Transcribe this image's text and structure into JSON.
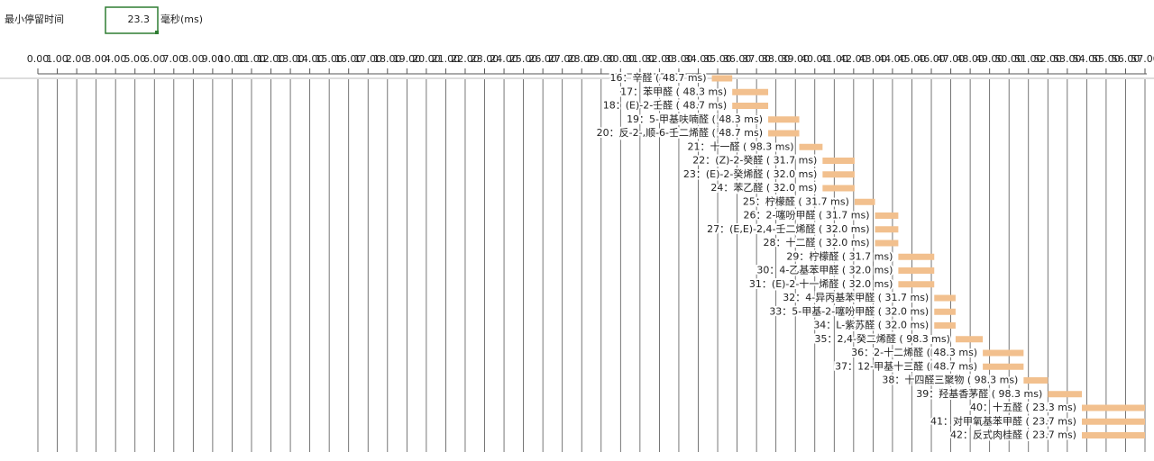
{
  "header": {
    "label": "最小停留时间",
    "value": "23.3",
    "unit": "毫秒(ms)"
  },
  "timeline": {
    "xlim": [
      0,
      57
    ],
    "ticks": [
      {
        "value": 0,
        "label": "0.00"
      },
      {
        "value": 1,
        "label": "1.00"
      },
      {
        "value": 2,
        "label": "2.00"
      },
      {
        "value": 3,
        "label": "3.00"
      },
      {
        "value": 4,
        "label": "4.00"
      },
      {
        "value": 5,
        "label": "5.00"
      },
      {
        "value": 6,
        "label": "6.00"
      },
      {
        "value": 7,
        "label": "7.00"
      },
      {
        "value": 8,
        "label": "8.00"
      },
      {
        "value": 9,
        "label": "9.00"
      },
      {
        "value": 10,
        "label": "10.00"
      },
      {
        "value": 11,
        "label": "11.00"
      },
      {
        "value": 12,
        "label": "12.00"
      },
      {
        "value": 13,
        "label": "13.00"
      },
      {
        "value": 14,
        "label": "14.00"
      },
      {
        "value": 15,
        "label": "15.00"
      },
      {
        "value": 16,
        "label": "16.00"
      },
      {
        "value": 17,
        "label": "17.00"
      },
      {
        "value": 18,
        "label": "18.00"
      },
      {
        "value": 19,
        "label": "19.00"
      },
      {
        "value": 20,
        "label": "20.00"
      },
      {
        "value": 21,
        "label": "21.00"
      },
      {
        "value": 22,
        "label": "22.00"
      },
      {
        "value": 23,
        "label": "23.00"
      },
      {
        "value": 24,
        "label": "24.00"
      },
      {
        "value": 25,
        "label": "25.00"
      },
      {
        "value": 26,
        "label": "26.00"
      },
      {
        "value": 27,
        "label": "27.00"
      },
      {
        "value": 28,
        "label": "28.00"
      },
      {
        "value": 29,
        "label": "29.00"
      },
      {
        "value": 30,
        "label": "30.00"
      },
      {
        "value": 31,
        "label": "31.00"
      },
      {
        "value": 32,
        "label": "32.00"
      },
      {
        "value": 33,
        "label": "33.00"
      },
      {
        "value": 34,
        "label": "34.00"
      },
      {
        "value": 35,
        "label": "35.00"
      },
      {
        "value": 36,
        "label": "36.00"
      },
      {
        "value": 37,
        "label": "37.00"
      },
      {
        "value": 38,
        "label": "38.00"
      },
      {
        "value": 39,
        "label": "39.00"
      },
      {
        "value": 40,
        "label": "40.00"
      },
      {
        "value": 41,
        "label": "41.00"
      },
      {
        "value": 42,
        "label": "42.00"
      },
      {
        "value": 43,
        "label": "43.00"
      },
      {
        "value": 44,
        "label": "44.00"
      },
      {
        "value": 45,
        "label": "45.00"
      },
      {
        "value": 46,
        "label": "46.00"
      },
      {
        "value": 47,
        "label": "47.00"
      },
      {
        "value": 48,
        "label": "48.00"
      },
      {
        "value": 49,
        "label": "49.00"
      },
      {
        "value": 50,
        "label": "50.00"
      },
      {
        "value": 51,
        "label": "51.00"
      },
      {
        "value": 52,
        "label": "52.00"
      },
      {
        "value": 53,
        "label": "53.00"
      },
      {
        "value": 54,
        "label": "54.00"
      },
      {
        "value": 55,
        "label": "55.00"
      },
      {
        "value": 56,
        "label": "56.00"
      },
      {
        "value": 57,
        "label": "57.00"
      }
    ],
    "rows": [
      {
        "label": "16：辛醛 ( 48.7 ms)",
        "start": 34.7,
        "end": 35.75
      },
      {
        "label": "17：苯甲醛 ( 48.3 ms)",
        "start": 35.75,
        "end": 37.6
      },
      {
        "label": "18：(E)-2-壬醛 ( 48.7 ms)",
        "start": 35.75,
        "end": 37.6
      },
      {
        "label": "19：5-甲基呋喃醛 ( 48.3 ms)",
        "start": 37.6,
        "end": 39.2
      },
      {
        "label": "20：反-2-,顺-6-壬二烯醛 ( 48.7 ms)",
        "start": 37.6,
        "end": 39.2
      },
      {
        "label": "21：十一醛 ( 98.3 ms)",
        "start": 39.2,
        "end": 40.4
      },
      {
        "label": "22：(Z)-2-癸醛 ( 31.7 ms)",
        "start": 40.4,
        "end": 42.05
      },
      {
        "label": "23：(E)-2-癸烯醛 ( 32.0 ms)",
        "start": 40.4,
        "end": 42.05
      },
      {
        "label": "24：苯乙醛 ( 32.0 ms)",
        "start": 40.4,
        "end": 42.05
      },
      {
        "label": "25：柠檬醛 ( 31.7 ms)",
        "start": 42.05,
        "end": 43.1
      },
      {
        "label": "26：2-噻吩甲醛 ( 31.7 ms)",
        "start": 43.1,
        "end": 44.3
      },
      {
        "label": "27：(E,E)-2,4-壬二烯醛 ( 32.0 ms)",
        "start": 43.1,
        "end": 44.3
      },
      {
        "label": "28：十二醛 ( 32.0 ms)",
        "start": 43.1,
        "end": 44.3
      },
      {
        "label": "29：柠檬醛 ( 31.7 ms)",
        "start": 44.3,
        "end": 46.15
      },
      {
        "label": "30：4-乙基苯甲醛 ( 32.0 ms)",
        "start": 44.3,
        "end": 46.15
      },
      {
        "label": "31：(E)-2-十一烯醛 ( 32.0 ms)",
        "start": 44.3,
        "end": 46.15
      },
      {
        "label": "32：4-异丙基苯甲醛 ( 31.7 ms)",
        "start": 46.15,
        "end": 47.25
      },
      {
        "label": "33：5-甲基-2-噻吩甲醛 ( 32.0 ms)",
        "start": 46.15,
        "end": 47.25
      },
      {
        "label": "34：L-紫苏醛 ( 32.0 ms)",
        "start": 46.15,
        "end": 47.25
      },
      {
        "label": "35：2,4-癸二烯醛 ( 98.3 ms)",
        "start": 47.25,
        "end": 48.65
      },
      {
        "label": "36：2-十二烯醛 ( 48.3 ms)",
        "start": 48.65,
        "end": 50.75
      },
      {
        "label": "37：12-甲基十三醛 ( 48.7 ms)",
        "start": 48.65,
        "end": 50.75
      },
      {
        "label": "38：十四醛三聚物 ( 98.3 ms)",
        "start": 50.75,
        "end": 52.0
      },
      {
        "label": "39：羟基香茅醛 ( 98.3 ms)",
        "start": 52.0,
        "end": 53.75
      },
      {
        "label": "40：十五醛 ( 23.3 ms)",
        "start": 53.75,
        "end": 57
      },
      {
        "label": "41：对甲氧基苯甲醛 ( 23.7 ms)",
        "start": 53.75,
        "end": 57
      },
      {
        "label": "42：反式肉桂醛 ( 23.7 ms)",
        "start": 53.75,
        "end": 57
      }
    ]
  }
}
